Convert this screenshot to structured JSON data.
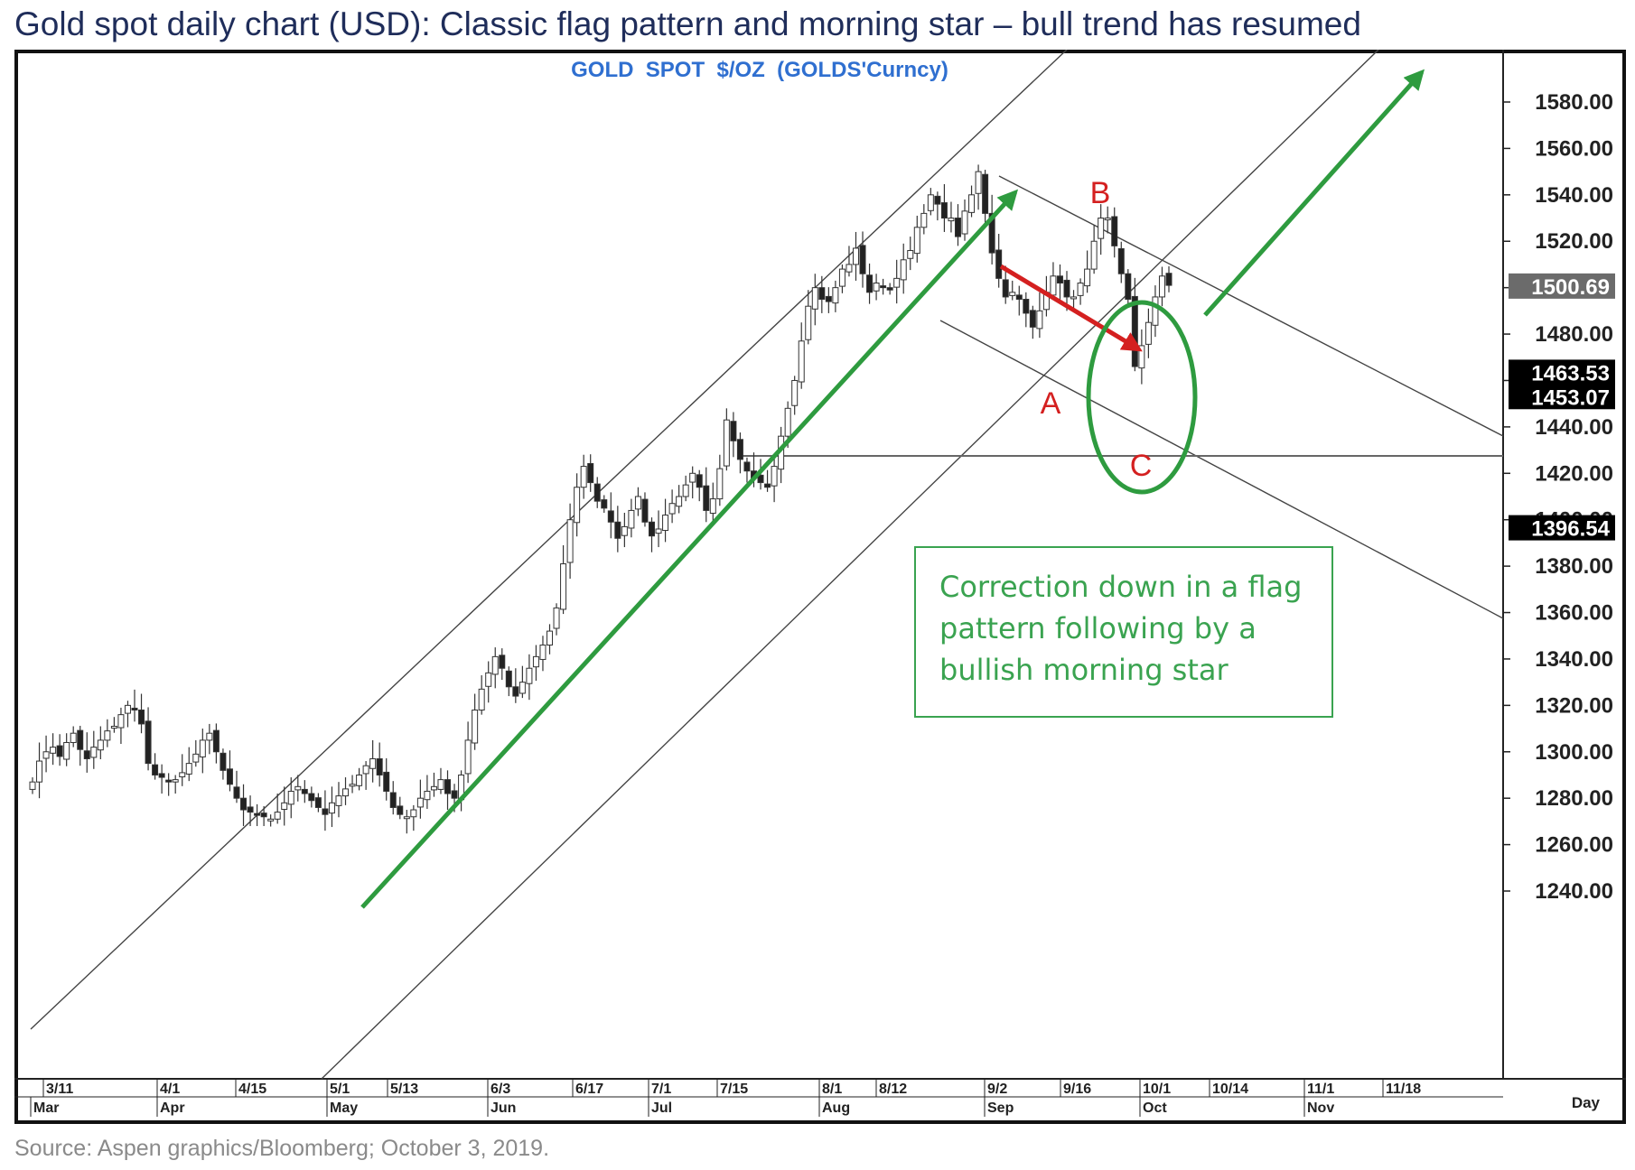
{
  "title": "Gold spot daily chart (USD): Classic flag pattern and morning star – bull trend has resumed",
  "source": "Source: Aspen graphics/Bloomberg; October 3, 2019.",
  "annotation_text": "Correction down in a flag pattern following by a bullish morning star",
  "colors": {
    "trend_arrow": "#2e9b3f",
    "correction_arrow": "#d42020",
    "labels_abc": "#d42020",
    "ellipse": "#2e9b3f",
    "subtitle": "#2f6fd0",
    "annotation": "#3aa350"
  },
  "chart_data": {
    "type": "candlestick",
    "subtitle": "GOLD  SPOT  $/OZ  (GOLDS'Curncy)",
    "y_ticks": [
      "1580.00",
      "1560.00",
      "1540.00",
      "1520.00",
      "1500.00",
      "1480.00",
      "1460.00",
      "1440.00",
      "1420.00",
      "1400.00",
      "1380.00",
      "1360.00",
      "1340.00",
      "1320.00",
      "1300.00",
      "1280.00",
      "1260.00",
      "1240.00"
    ],
    "ylim": [
      1218,
      1600
    ],
    "price_tags": [
      "1500.69",
      "1463.53",
      "1453.07",
      "1396.54"
    ],
    "date_ticks": [
      "3/11",
      "4/1",
      "4/15",
      "5/1",
      "5/13",
      "6/3",
      "6/17",
      "7/1",
      "7/15",
      "8/1",
      "8/12",
      "9/2",
      "9/16",
      "10/1",
      "10/14",
      "11/1",
      "11/18"
    ],
    "month_labels": [
      "Mar",
      "Apr",
      "May",
      "Jun",
      "Jul",
      "Aug",
      "Sep",
      "Oct",
      "Nov"
    ],
    "period_label": "Day",
    "horizontal_level": 1453.07,
    "wave_labels": [
      "A",
      "B",
      "C"
    ],
    "closes": [
      1287,
      1296,
      1300,
      1302,
      1298,
      1304,
      1308,
      1301,
      1297,
      1302,
      1305,
      1309,
      1311,
      1316,
      1320,
      1318,
      1312,
      1295,
      1290,
      1289,
      1287,
      1288,
      1291,
      1295,
      1299,
      1305,
      1308,
      1300,
      1292,
      1286,
      1280,
      1275,
      1274,
      1273,
      1272,
      1271,
      1274,
      1278,
      1283,
      1285,
      1282,
      1279,
      1276,
      1273,
      1278,
      1281,
      1284,
      1286,
      1290,
      1294,
      1297,
      1290,
      1283,
      1276,
      1273,
      1272,
      1275,
      1280,
      1283,
      1285,
      1288,
      1282,
      1280,
      1290,
      1305,
      1318,
      1327,
      1334,
      1341,
      1336,
      1328,
      1324,
      1330,
      1336,
      1341,
      1346,
      1352,
      1362,
      1381,
      1400,
      1414,
      1423,
      1416,
      1408,
      1405,
      1399,
      1392,
      1397,
      1404,
      1410,
      1399,
      1393,
      1396,
      1402,
      1407,
      1410,
      1415,
      1420,
      1414,
      1404,
      1409,
      1422,
      1443,
      1434,
      1426,
      1421,
      1418,
      1416,
      1414,
      1423,
      1436,
      1448,
      1460,
      1477,
      1492,
      1500,
      1495,
      1494,
      1500,
      1508,
      1510,
      1517,
      1506,
      1498,
      1502,
      1500,
      1499,
      1504,
      1512,
      1516,
      1526,
      1532,
      1540,
      1536,
      1530,
      1530,
      1522,
      1533,
      1540,
      1550,
      1532,
      1515,
      1504,
      1496,
      1498,
      1495,
      1489,
      1483,
      1490,
      1498,
      1505,
      1502,
      1496,
      1496,
      1502,
      1508,
      1520,
      1530,
      1530,
      1518,
      1506,
      1495,
      1466,
      1475,
      1485,
      1496,
      1505,
      1501
    ]
  }
}
